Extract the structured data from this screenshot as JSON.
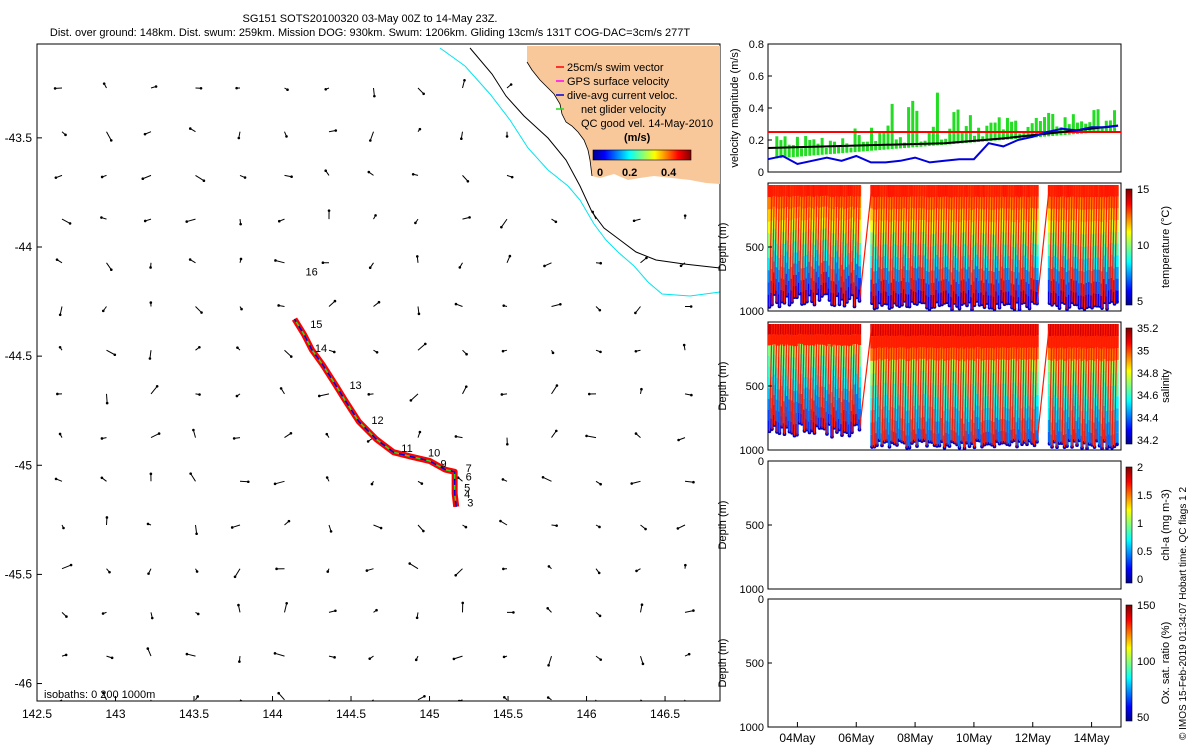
{
  "header": {
    "line1": "SG151 SOTS20100320 03-May 00Z to 14-May 23Z.",
    "line2": "Dist. over ground: 148km. Dist. swum: 259km. Mission DOG: 930km. Swum: 1206km. Gliding 13cm/s 131T COG-DAC=3cm/s 277T"
  },
  "credit": "© IMOS 15-Feb-2019 01:34:07 Hobart time. QC flags 1 2",
  "colors": {
    "track_red": "#ff0000",
    "track_blue": "#0000dd",
    "track_green": "#22dd22",
    "coast": "#00e5ee",
    "land": "#f9c89a",
    "gps": "#ff00ff",
    "temp_ref": "#ff0000",
    "mean_line": "#000000"
  },
  "chart_data": [
    {
      "type": "scatter",
      "name": "map",
      "xlim": [
        142.5,
        146.85
      ],
      "ylim": [
        -46.08,
        -43.07
      ],
      "x_ticks": [
        142.5,
        143,
        143.5,
        144,
        144.5,
        145,
        145.5,
        146,
        146.5
      ],
      "y_ticks": [
        -43.5,
        -44,
        -44.5,
        -45,
        -45.5,
        -46
      ],
      "isobath_label": "isobaths: 0   200  1000m",
      "legend": {
        "items": [
          "25cm/s swim vector",
          "GPS surface velocity",
          "dive-avg current veloc.",
          "net glider velocity",
          "QC good vel. 14-May-2010"
        ],
        "colorbar_title": "(m/s)",
        "colorbar_ticks": [
          "0",
          "0.2",
          "0.4"
        ]
      },
      "day_labels": [
        {
          "label": "3",
          "x": 145.24,
          "y": -45.19
        },
        {
          "label": "4",
          "x": 145.22,
          "y": -45.15
        },
        {
          "label": "5",
          "x": 145.22,
          "y": -45.12
        },
        {
          "label": "6",
          "x": 145.23,
          "y": -45.07
        },
        {
          "label": "7",
          "x": 145.23,
          "y": -45.03
        },
        {
          "label": "9",
          "x": 145.07,
          "y": -45.01
        },
        {
          "label": "10",
          "x": 144.99,
          "y": -44.96
        },
        {
          "label": "11",
          "x": 144.82,
          "y": -44.94
        },
        {
          "label": "12",
          "x": 144.63,
          "y": -44.81
        },
        {
          "label": "13",
          "x": 144.49,
          "y": -44.65
        },
        {
          "label": "14",
          "x": 144.27,
          "y": -44.48
        },
        {
          "label": "15",
          "x": 144.24,
          "y": -44.37
        },
        {
          "label": "16",
          "x": 144.21,
          "y": -44.13
        }
      ],
      "track": [
        [
          145.17,
          -45.19
        ],
        [
          145.16,
          -45.13
        ],
        [
          145.16,
          -45.08
        ],
        [
          145.16,
          -45.03
        ],
        [
          145.1,
          -45.02
        ],
        [
          145.0,
          -44.98
        ],
        [
          144.88,
          -44.96
        ],
        [
          144.77,
          -44.94
        ],
        [
          144.66,
          -44.88
        ],
        [
          144.55,
          -44.8
        ],
        [
          144.46,
          -44.7
        ],
        [
          144.4,
          -44.63
        ],
        [
          144.32,
          -44.54
        ],
        [
          144.25,
          -44.47
        ],
        [
          144.2,
          -44.4
        ],
        [
          144.14,
          -44.33
        ]
      ]
    },
    {
      "type": "line",
      "name": "velocity",
      "ylabel": "velocity magnitude (m/s)",
      "ylim": [
        0,
        0.8
      ],
      "y_ticks": [
        "0",
        "0.2",
        "0.4",
        "0.6",
        "0.8"
      ],
      "reference": 0.25,
      "series": [
        {
          "values": [
            [
              3.0,
              0.08
            ],
            [
              3.5,
              0.1
            ],
            [
              4.0,
              0.05
            ],
            [
              4.5,
              0.07
            ],
            [
              5.0,
              0.09
            ],
            [
              5.5,
              0.07
            ],
            [
              6.0,
              0.1
            ],
            [
              6.5,
              0.06
            ],
            [
              7.0,
              0.06
            ],
            [
              7.5,
              0.07
            ],
            [
              8.0,
              0.09
            ],
            [
              8.5,
              0.06
            ],
            [
              9.0,
              0.07
            ],
            [
              9.5,
              0.08
            ],
            [
              10.0,
              0.08
            ],
            [
              10.5,
              0.18
            ],
            [
              11.0,
              0.16
            ],
            [
              11.5,
              0.2
            ],
            [
              12.0,
              0.22
            ],
            [
              12.5,
              0.25
            ],
            [
              13.0,
              0.27
            ],
            [
              13.5,
              0.26
            ],
            [
              14.0,
              0.28
            ],
            [
              14.5,
              0.28
            ],
            [
              14.9,
              0.29
            ]
          ]
        },
        {
          "values": [
            [
              3.0,
              0.15
            ],
            [
              5.0,
              0.16
            ],
            [
              7.0,
              0.17
            ],
            [
              9.0,
              0.18
            ],
            [
              11.0,
              0.21
            ],
            [
              13.0,
              0.25
            ],
            [
              14.9,
              0.29
            ]
          ]
        }
      ]
    },
    {
      "type": "heatmap",
      "name": "temperature",
      "ylabel": "Depth (m)",
      "y_ticks": [
        "",
        "500",
        "1000"
      ],
      "colorbar_label": "temperature (°C)",
      "colorbar_ticks": [
        "5",
        "10",
        "15"
      ]
    },
    {
      "type": "heatmap",
      "name": "salinity",
      "ylabel": "Depth (m)",
      "y_ticks": [
        "",
        "500",
        "1000"
      ],
      "colorbar_label": "salinity",
      "colorbar_ticks": [
        "34.2",
        "34.4",
        "34.6",
        "34.8",
        "35",
        "35.2"
      ]
    },
    {
      "type": "heatmap",
      "name": "chla",
      "ylabel": "Depth (m)",
      "y_ticks": [
        "0",
        "500",
        "1000"
      ],
      "colorbar_label": "chl-a (mg m-3)",
      "colorbar_ticks": [
        "0",
        "0.5",
        "1",
        "1.5",
        "2"
      ]
    },
    {
      "type": "heatmap",
      "name": "oxsat",
      "ylabel": "Depth (m)",
      "y_ticks": [
        "0",
        "500",
        "1000"
      ],
      "colorbar_label": "Ox. sat. ratio (%)",
      "colorbar_ticks": [
        "50",
        "100",
        "150"
      ],
      "x_ticks": [
        "04May",
        "06May",
        "08May",
        "10May",
        "12May",
        "14May"
      ]
    }
  ]
}
